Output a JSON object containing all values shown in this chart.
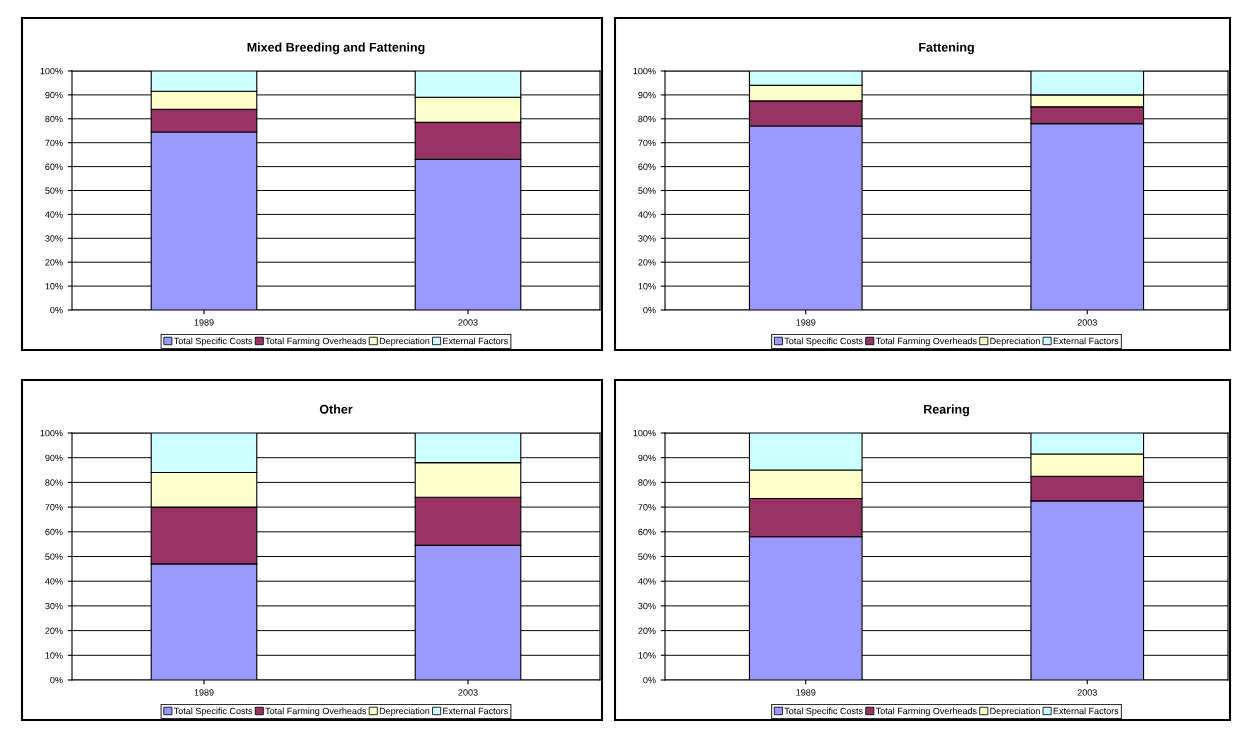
{
  "chart_data": [
    {
      "type": "bar",
      "title": "Mixed Breeding and Fattening",
      "stacked": true,
      "categories": [
        "1989",
        "2003"
      ],
      "ylim": [
        0,
        100
      ],
      "yticks": [
        {
          "value": 0,
          "label": "0%"
        },
        {
          "value": 10,
          "label": "10%"
        },
        {
          "value": 20,
          "label": "20%"
        },
        {
          "value": 30,
          "label": "30%"
        },
        {
          "value": 40,
          "label": "40%"
        },
        {
          "value": 50,
          "label": "50%"
        },
        {
          "value": 60,
          "label": "60%"
        },
        {
          "value": 70,
          "label": "70%"
        },
        {
          "value": 80,
          "label": "80%"
        },
        {
          "value": 90,
          "label": "90%"
        },
        {
          "value": 100,
          "label": "100%"
        }
      ],
      "grid": "y",
      "legend": "bottom",
      "series": [
        {
          "name": "Total Specific Costs",
          "color": "#9999ff",
          "values": [
            74.5,
            63
          ]
        },
        {
          "name": "Total Farming Overheads",
          "color": "#993366",
          "values": [
            9.5,
            15.5
          ]
        },
        {
          "name": "Depreciation",
          "color": "#ffffcc",
          "values": [
            7.5,
            10.5
          ]
        },
        {
          "name": "External Factors",
          "color": "#ccffff",
          "values": [
            8.5,
            11
          ]
        }
      ]
    },
    {
      "type": "bar",
      "title": "Fattening",
      "stacked": true,
      "categories": [
        "1989",
        "2003"
      ],
      "ylim": [
        0,
        100
      ],
      "yticks": [
        {
          "value": 0,
          "label": "0%"
        },
        {
          "value": 10,
          "label": "10%"
        },
        {
          "value": 20,
          "label": "20%"
        },
        {
          "value": 30,
          "label": "30%"
        },
        {
          "value": 40,
          "label": "40%"
        },
        {
          "value": 50,
          "label": "50%"
        },
        {
          "value": 60,
          "label": "60%"
        },
        {
          "value": 70,
          "label": "70%"
        },
        {
          "value": 80,
          "label": "80%"
        },
        {
          "value": 90,
          "label": "90%"
        },
        {
          "value": 100,
          "label": "100%"
        }
      ],
      "grid": "y",
      "legend": "bottom",
      "series": [
        {
          "name": "Total Specific Costs",
          "color": "#9999ff",
          "values": [
            77,
            78
          ]
        },
        {
          "name": "Total Farming Overheads",
          "color": "#993366",
          "values": [
            10.5,
            7
          ]
        },
        {
          "name": "Depreciation",
          "color": "#ffffcc",
          "values": [
            6.5,
            5
          ]
        },
        {
          "name": "External Factors",
          "color": "#ccffff",
          "values": [
            6,
            10
          ]
        }
      ]
    },
    {
      "type": "bar",
      "title": "Other",
      "stacked": true,
      "categories": [
        "1989",
        "2003"
      ],
      "ylim": [
        0,
        100
      ],
      "yticks": [
        {
          "value": 0,
          "label": "0%"
        },
        {
          "value": 10,
          "label": "10%"
        },
        {
          "value": 20,
          "label": "20%"
        },
        {
          "value": 30,
          "label": "30%"
        },
        {
          "value": 40,
          "label": "40%"
        },
        {
          "value": 50,
          "label": "50%"
        },
        {
          "value": 60,
          "label": "60%"
        },
        {
          "value": 70,
          "label": "70%"
        },
        {
          "value": 80,
          "label": "80%"
        },
        {
          "value": 90,
          "label": "90%"
        },
        {
          "value": 100,
          "label": "100%"
        }
      ],
      "grid": "y",
      "legend": "bottom",
      "series": [
        {
          "name": "Total Specific Costs",
          "color": "#9999ff",
          "values": [
            47,
            54.5
          ]
        },
        {
          "name": "Total Farming Overheads",
          "color": "#993366",
          "values": [
            23,
            19.5
          ]
        },
        {
          "name": "Depreciation",
          "color": "#ffffcc",
          "values": [
            14,
            14
          ]
        },
        {
          "name": "External Factors",
          "color": "#ccffff",
          "values": [
            16,
            12
          ]
        }
      ]
    },
    {
      "type": "bar",
      "title": "Rearing",
      "stacked": true,
      "categories": [
        "1989",
        "2003"
      ],
      "ylim": [
        0,
        100
      ],
      "yticks": [
        {
          "value": 0,
          "label": "0%"
        },
        {
          "value": 10,
          "label": "10%"
        },
        {
          "value": 20,
          "label": "20%"
        },
        {
          "value": 30,
          "label": "30%"
        },
        {
          "value": 40,
          "label": "40%"
        },
        {
          "value": 50,
          "label": "50%"
        },
        {
          "value": 60,
          "label": "60%"
        },
        {
          "value": 70,
          "label": "70%"
        },
        {
          "value": 80,
          "label": "80%"
        },
        {
          "value": 90,
          "label": "90%"
        },
        {
          "value": 100,
          "label": "100%"
        }
      ],
      "grid": "y",
      "legend": "bottom",
      "series": [
        {
          "name": "Total Specific Costs",
          "color": "#9999ff",
          "values": [
            58,
            72.5
          ]
        },
        {
          "name": "Total Farming Overheads",
          "color": "#993366",
          "values": [
            15.5,
            10
          ]
        },
        {
          "name": "Depreciation",
          "color": "#ffffcc",
          "values": [
            11.5,
            9
          ]
        },
        {
          "name": "External Factors",
          "color": "#ccffff",
          "values": [
            15,
            8.5
          ]
        }
      ]
    }
  ]
}
